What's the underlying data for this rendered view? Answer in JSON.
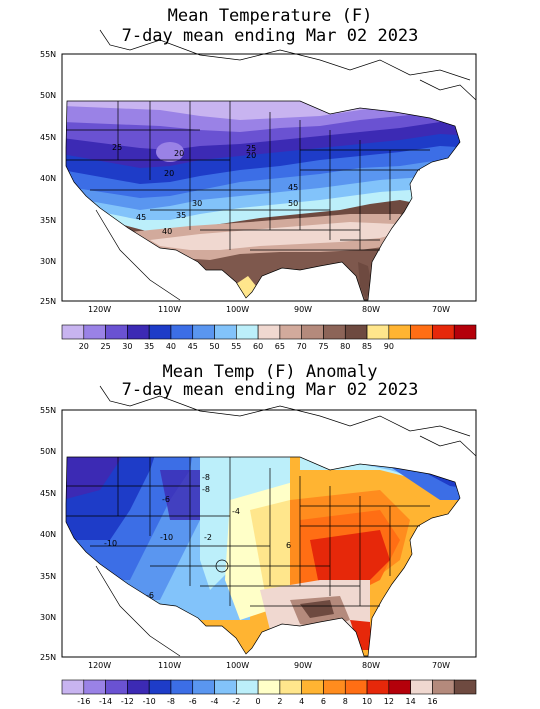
{
  "map1": {
    "title_line1": "Mean Temperature (F)",
    "title_line2": "7-day mean ending Mar 02 2023",
    "lat_labels": [
      "55N",
      "50N",
      "45N",
      "40N",
      "35N",
      "30N",
      "25N"
    ],
    "lon_labels": [
      "120W",
      "110W",
      "100W",
      "90W",
      "80W",
      "70W"
    ],
    "contour_labels": [
      "25",
      "20",
      "20",
      "25",
      "20",
      "45",
      "50",
      "30",
      "35",
      "45",
      "40"
    ],
    "legend": {
      "colors": [
        "#c8b4f0",
        "#9a82e6",
        "#6a52d2",
        "#3c2ab4",
        "#1e3cc8",
        "#3c6ee6",
        "#5a96f0",
        "#82c3fa",
        "#bceffa",
        "#f0d8d0",
        "#d2aa9c",
        "#b48a7c",
        "#8c6458",
        "#6e4a40",
        "#ffe68c",
        "#ffb432",
        "#ff6e14",
        "#e6280a",
        "#b4000a"
      ],
      "labels": [
        "20",
        "25",
        "30",
        "35",
        "40",
        "45",
        "50",
        "55",
        "60",
        "65",
        "70",
        "75",
        "80",
        "85",
        "90"
      ]
    }
  },
  "map2": {
    "title_line1": "Mean Temp (F) Anomaly",
    "title_line2": "7-day mean ending Mar 02 2023",
    "lat_labels": [
      "55N",
      "50N",
      "45N",
      "40N",
      "35N",
      "30N",
      "25N"
    ],
    "lon_labels": [
      "120W",
      "110W",
      "100W",
      "90W",
      "80W",
      "70W"
    ],
    "contour_labels": [
      "-8",
      "-8",
      "-6",
      "-4",
      "-10",
      "-10",
      "-2",
      "6",
      "-6"
    ],
    "legend": {
      "colors": [
        "#c8b4f0",
        "#9a82e6",
        "#6a52d2",
        "#3c2ab4",
        "#1e3cc8",
        "#3c6ee6",
        "#5a96f0",
        "#82c3fa",
        "#bceffa",
        "#ffffc8",
        "#ffe68c",
        "#ffb432",
        "#ff8c1e",
        "#ff6e14",
        "#e6280a",
        "#b4000a",
        "#f0d8d0",
        "#b48a7c",
        "#6e4a40"
      ],
      "labels": [
        "-16",
        "-14",
        "-12",
        "-10",
        "-8",
        "-6",
        "-4",
        "-2",
        "0",
        "2",
        "4",
        "6",
        "8",
        "10",
        "12",
        "14",
        "16"
      ]
    }
  }
}
